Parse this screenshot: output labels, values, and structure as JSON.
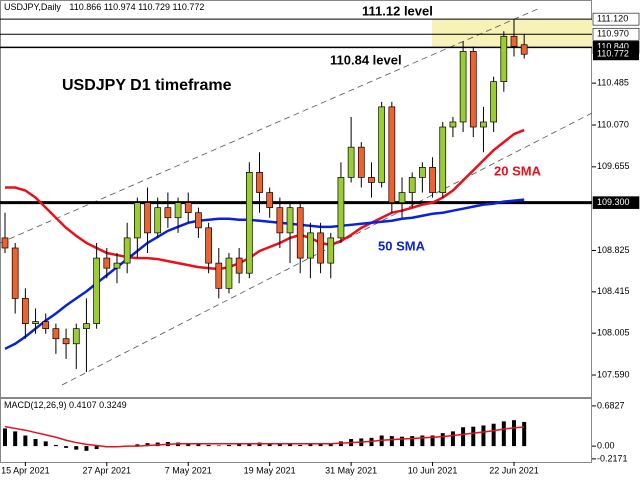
{
  "chart_data": [
    {
      "type": "candlestick",
      "title": "USDJPY,Daily",
      "heading": "USDJPY D1 timeframe",
      "annotations": [
        "111.12 level",
        "110.84 level"
      ],
      "categories": [
        null,
        null,
        "15 Apr 2021",
        null,
        null,
        null,
        null,
        null,
        null,
        null,
        "27 Apr 2021",
        null,
        null,
        null,
        null,
        null,
        null,
        null,
        "7 May 2021",
        null,
        null,
        null,
        null,
        null,
        null,
        null,
        "19 May 2021",
        null,
        null,
        null,
        null,
        null,
        null,
        null,
        "31 May 2021",
        null,
        null,
        null,
        null,
        null,
        null,
        null,
        "10 Jun 2021",
        null,
        null,
        null,
        null,
        null,
        null,
        null,
        "22 Jun 2021",
        null
      ],
      "open": [
        108.95,
        108.85,
        108.35,
        108.1,
        108.12,
        108.05,
        107.95,
        107.9,
        108.05,
        108.1,
        108.75,
        108.65,
        108.7,
        108.95,
        109.3,
        109.0,
        109.25,
        109.15,
        109.3,
        109.2,
        109.05,
        108.7,
        108.45,
        108.75,
        108.6,
        109.6,
        109.4,
        109.25,
        109.0,
        109.25,
        108.75,
        109.0,
        108.7,
        108.95,
        109.55,
        109.85,
        109.55,
        109.5,
        110.25,
        109.3,
        109.4,
        109.55,
        109.65,
        109.4,
        110.05,
        110.1,
        110.8,
        110.05,
        110.1,
        110.5,
        110.95,
        110.866
      ],
      "high": [
        109.2,
        108.9,
        108.45,
        108.25,
        108.2,
        108.1,
        108.05,
        108.1,
        108.35,
        108.9,
        108.85,
        108.8,
        109.1,
        109.35,
        109.45,
        109.35,
        109.4,
        109.35,
        109.4,
        109.25,
        109.1,
        108.85,
        108.8,
        108.85,
        109.7,
        109.8,
        109.45,
        109.35,
        109.3,
        109.3,
        109.1,
        109.1,
        109.0,
        109.7,
        110.15,
        109.9,
        109.7,
        110.3,
        110.3,
        109.55,
        109.6,
        109.7,
        109.75,
        110.1,
        110.15,
        110.9,
        110.85,
        110.25,
        110.55,
        111.0,
        111.12,
        110.974
      ],
      "low": [
        108.8,
        108.2,
        107.95,
        108.0,
        108.0,
        107.8,
        107.75,
        107.65,
        107.62,
        108.05,
        108.55,
        108.5,
        108.6,
        108.75,
        108.8,
        108.95,
        109.05,
        109.0,
        109.1,
        108.95,
        108.6,
        108.35,
        108.4,
        108.5,
        108.55,
        109.2,
        109.15,
        108.85,
        108.7,
        108.6,
        108.55,
        108.6,
        108.55,
        108.9,
        109.5,
        109.45,
        109.35,
        109.45,
        109.2,
        109.15,
        109.25,
        109.4,
        109.35,
        109.35,
        109.95,
        110.0,
        109.95,
        109.8,
        110.0,
        110.4,
        110.75,
        110.729
      ],
      "close": [
        108.85,
        108.35,
        108.1,
        108.12,
        108.05,
        107.95,
        107.9,
        108.05,
        108.1,
        108.75,
        108.65,
        108.7,
        108.95,
        109.3,
        109.0,
        109.25,
        109.15,
        109.3,
        109.2,
        109.05,
        108.7,
        108.45,
        108.75,
        108.6,
        109.6,
        109.4,
        109.25,
        109.0,
        109.25,
        108.75,
        109.0,
        108.7,
        108.95,
        109.55,
        109.85,
        109.55,
        109.5,
        110.25,
        109.3,
        109.4,
        109.55,
        109.65,
        109.4,
        110.05,
        110.1,
        110.8,
        110.05,
        110.1,
        110.5,
        110.95,
        110.85,
        110.772
      ],
      "up_color": "#9acd32",
      "down_color": "#ee6230",
      "series": [
        {
          "name": "20 SMA",
          "color": "#e8101c",
          "values": [
            109.45,
            109.45,
            109.42,
            109.35,
            109.25,
            109.15,
            109.05,
            108.97,
            108.9,
            108.85,
            108.8,
            108.78,
            108.76,
            108.75,
            108.75,
            108.74,
            108.72,
            108.7,
            108.68,
            108.66,
            108.65,
            108.64,
            108.66,
            108.7,
            108.75,
            108.82,
            108.86,
            108.9,
            108.95,
            108.98,
            108.95,
            108.9,
            108.88,
            108.92,
            108.98,
            109.05,
            109.1,
            109.15,
            109.2,
            109.22,
            109.25,
            109.28,
            109.3,
            109.35,
            109.42,
            109.52,
            109.62,
            109.72,
            109.82,
            109.9,
            109.98,
            110.02
          ]
        },
        {
          "name": "50 SMA",
          "color": "#0a22d8",
          "values": [
            107.85,
            107.9,
            107.97,
            108.05,
            108.13,
            108.2,
            108.28,
            108.35,
            108.42,
            108.5,
            108.58,
            108.66,
            108.74,
            108.82,
            108.9,
            108.96,
            109.02,
            109.06,
            109.1,
            109.12,
            109.13,
            109.14,
            109.14,
            109.13,
            109.13,
            109.12,
            109.11,
            109.1,
            109.09,
            109.08,
            109.07,
            109.06,
            109.06,
            109.07,
            109.08,
            109.09,
            109.1,
            109.11,
            109.12,
            109.14,
            109.15,
            109.17,
            109.19,
            109.2,
            109.22,
            109.24,
            109.26,
            109.28,
            109.29,
            109.31,
            109.32,
            109.33
          ]
        }
      ],
      "ylim": [
        107.372,
        111.3
      ],
      "yticks": [
        {
          "value": 110.485,
          "label": "110.485"
        },
        {
          "value": 110.07,
          "label": "110.070"
        },
        {
          "value": 109.655,
          "label": "109.655"
        },
        {
          "value": 108.825,
          "label": "108.825"
        },
        {
          "value": 108.415,
          "label": "108.415"
        },
        {
          "value": 108.005,
          "label": "108.005"
        },
        {
          "value": 107.59,
          "label": "107.590"
        }
      ],
      "levels": [
        {
          "value": 111.12,
          "label": "111.120",
          "line_width": 1,
          "label_bg": "#ffffff"
        },
        {
          "value": 110.97,
          "label": "110.970",
          "line_width": 1,
          "label_bg": "#ffffff"
        },
        {
          "value": 110.84,
          "label": "110.840",
          "line_width": 1.5,
          "label_bg": "#000000"
        },
        {
          "value": 109.3,
          "label": "109.300",
          "line_width": 3,
          "label_bg": "#000000"
        }
      ],
      "highlight_color": "#f6f2b8"
    },
    {
      "type": "macd",
      "title": "MACD(12,26,9)",
      "values": [
        0.3,
        0.25,
        0.18,
        0.12,
        0.08,
        0.02,
        -0.03,
        -0.06,
        -0.08,
        -0.05,
        -0.02,
        -0.01,
        0.0,
        0.03,
        0.05,
        0.06,
        0.07,
        0.06,
        0.05,
        0.03,
        0.02,
        0.01,
        0.02,
        0.03,
        0.05,
        0.06,
        0.05,
        0.04,
        0.03,
        0.02,
        0.03,
        0.04,
        0.05,
        0.08,
        0.12,
        0.13,
        0.14,
        0.18,
        0.17,
        0.16,
        0.17,
        0.18,
        0.18,
        0.22,
        0.25,
        0.32,
        0.33,
        0.35,
        0.38,
        0.42,
        0.44,
        0.4107
      ],
      "signal": [
        0.33,
        0.3,
        0.27,
        0.23,
        0.19,
        0.15,
        0.1,
        0.06,
        0.03,
        0.01,
        -0.01,
        -0.01,
        0.0,
        0.0,
        0.01,
        0.02,
        0.03,
        0.04,
        0.04,
        0.04,
        0.04,
        0.04,
        0.04,
        0.04,
        0.04,
        0.04,
        0.04,
        0.04,
        0.04,
        0.04,
        0.04,
        0.04,
        0.04,
        0.05,
        0.06,
        0.07,
        0.08,
        0.1,
        0.11,
        0.12,
        0.13,
        0.14,
        0.15,
        0.16,
        0.18,
        0.2,
        0.22,
        0.24,
        0.26,
        0.29,
        0.31,
        0.3249
      ],
      "bar_color": "#000000",
      "signal_color": "#e8101c",
      "ylim": [
        -0.27,
        0.8
      ],
      "yticks": [
        0.6827,
        {
          "value": 0,
          "label": "0.00"
        },
        -0.2171
      ]
    }
  ]
}
